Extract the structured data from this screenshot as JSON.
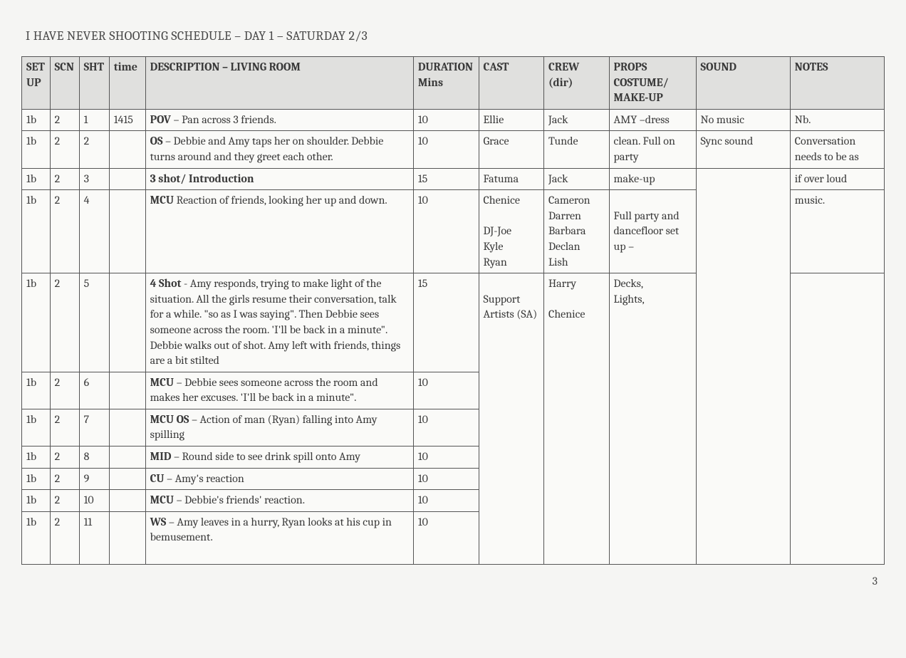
{
  "title": "I HAVE NEVER SHOOTING SCHEDULE – DAY 1 – SATURDAY 2/3",
  "pageNumber": "3",
  "headers": {
    "setup": "SET UP",
    "scn": "SCN",
    "sht": "SHT",
    "time": "time",
    "description": "DESCRIPTION – LIVING ROOM",
    "duration": "DURATION Mins",
    "cast": "CAST",
    "crew": "CREW (dir)",
    "props": "PROPS COSTUME/ MAKE-UP",
    "sound": "SOUND",
    "notes": "NOTES"
  },
  "rows": [
    {
      "setup": "1b",
      "scn": "2",
      "sht": "1",
      "time": "1415",
      "desc_b": "POV",
      "desc_r": " – Pan across 3 friends.",
      "dur": "10",
      "cast": "Ellie",
      "crew": "Jack",
      "props": "AMY –dress",
      "sound": "No music",
      "notes": "Nb."
    },
    {
      "setup": "1b",
      "scn": "2",
      "sht": "2",
      "time": "",
      "desc_b": "OS",
      "desc_r": " – Debbie and Amy taps her on shoulder. Debbie turns around and they greet each other.",
      "dur": "10",
      "cast": "Grace",
      "crew": "Tunde",
      "props": "clean. Full on party",
      "sound": "Sync sound",
      "notes": "Conversation needs to be as"
    },
    {
      "setup": "1b",
      "scn": "2",
      "sht": "3",
      "time": "",
      "desc_b": "3 shot/ Introduction",
      "desc_r": "",
      "dur": "15",
      "cast": "Fatuma",
      "crew": "Jack",
      "props": "make-up",
      "sound": "",
      "notes": "if over loud"
    },
    {
      "setup": "1b",
      "scn": "2",
      "sht": "4",
      "time": "",
      "desc_b": "MCU",
      "desc_r": " Reaction of friends, looking her up and down.",
      "dur": "10",
      "cast": "Chenice\n\nDJ-Joe\nKyle\nRyan",
      "crew": "Cameron\nDarren\nBarbara\nDeclan\nLish",
      "props": "\nFull party and dancefloor set up –",
      "sound": "",
      "notes": "music."
    },
    {
      "setup": "1b",
      "scn": "2",
      "sht": "5",
      "time": "",
      "desc_b": "4 Shot",
      "desc_r": " - Amy responds, trying to make light of the situation. All the girls resume their conversation, talk for a while. \"so as I was saying\". Then Debbie sees someone across the room. 'I'll be back in a minute\". Debbie walks out of shot.  Amy left with friends, things are a bit stilted",
      "dur": "15",
      "cast": "\nSupport Artists (SA)",
      "crew": "Harry\n\nChenice",
      "props": "Decks,\nLights,",
      "sound": "",
      "notes": ""
    },
    {
      "setup": "1b",
      "scn": "2",
      "sht": "6",
      "time": "",
      "desc_b": "MCU",
      "desc_r": " – Debbie sees someone across the room and makes her excuses. 'I'll be back in a minute\".",
      "dur": "10",
      "cast": "",
      "crew": "",
      "props": "",
      "sound": "",
      "notes": ""
    },
    {
      "setup": "1b",
      "scn": "2",
      "sht": "7",
      "time": "",
      "desc_b": "MCU OS",
      "desc_r": " – Action of man (Ryan) falling into Amy spilling",
      "dur": "10",
      "cast": "",
      "crew": "",
      "props": "",
      "sound": "",
      "notes": ""
    },
    {
      "setup": "1b",
      "scn": "2",
      "sht": "8",
      "time": "",
      "desc_b": "MID",
      "desc_r": " – Round side to see drink spill onto Amy",
      "dur": "10",
      "cast": "",
      "crew": "",
      "props": "",
      "sound": "",
      "notes": ""
    },
    {
      "setup": "1b",
      "scn": "2",
      "sht": "9",
      "time": "",
      "desc_b": "CU",
      "desc_r": " – Amy's reaction",
      "dur": "10",
      "cast": "",
      "crew": "",
      "props": "",
      "sound": "",
      "notes": ""
    },
    {
      "setup": "1b",
      "scn": "2",
      "sht": "10",
      "time": "",
      "desc_b": "MCU",
      "desc_r": " – Debbie's friends' reaction.",
      "dur": "10",
      "cast": "",
      "crew": "",
      "props": "",
      "sound": "",
      "notes": ""
    },
    {
      "setup": "1b",
      "scn": "2",
      "sht": "11",
      "time": "",
      "desc_b": "WS",
      "desc_r": " – Amy leaves in a hurry, Ryan looks at his cup in bemusement.\n\n",
      "dur": "10",
      "cast": "",
      "crew": "",
      "props": "",
      "sound": "",
      "notes": ""
    }
  ],
  "mergeDown": {
    "cast": [
      0,
      0,
      0,
      0,
      1,
      1,
      1,
      1,
      1,
      1,
      0
    ],
    "crew": [
      0,
      0,
      0,
      0,
      1,
      1,
      1,
      1,
      1,
      1,
      0
    ],
    "props": [
      0,
      0,
      0,
      0,
      1,
      1,
      1,
      1,
      1,
      1,
      0
    ],
    "sound": [
      0,
      0,
      1,
      1,
      1,
      1,
      1,
      1,
      1,
      1,
      0
    ],
    "notes": [
      0,
      0,
      0,
      0,
      1,
      1,
      1,
      1,
      1,
      1,
      0
    ]
  },
  "colWidths": {
    "setup": "col-setup",
    "scn": "col-scn",
    "sht": "col-sht",
    "time": "col-time",
    "description": "col-desc",
    "duration": "col-dur",
    "cast": "col-cast",
    "crew": "col-crew",
    "props": "col-props",
    "sound": "col-sound",
    "notes": "col-notes"
  }
}
